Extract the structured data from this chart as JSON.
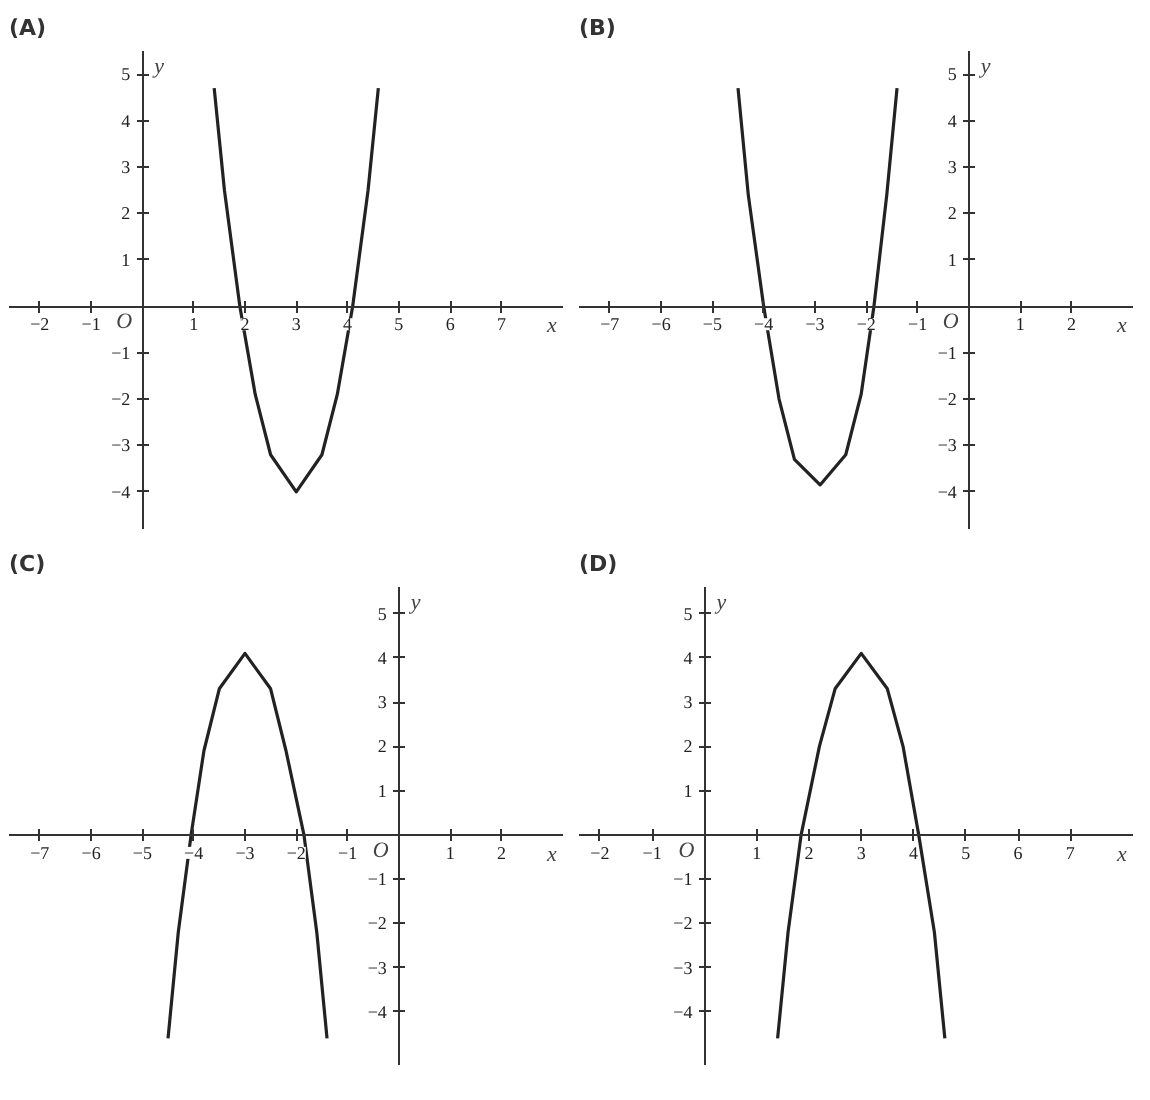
{
  "chart_data": [
    {
      "type": "line",
      "title": "(A)",
      "xlabel": "x",
      "ylabel": "y",
      "annotations": [
        "O"
      ],
      "xlim": [
        -2.6,
        8.2
      ],
      "ylim": [
        -4.8,
        5.5
      ],
      "xticks": [
        {
          "value": -2,
          "label": "−2"
        },
        {
          "value": -1,
          "label": "−1"
        },
        1,
        2,
        3,
        4,
        5,
        6,
        7
      ],
      "yticks": [
        {
          "value": -4,
          "label": "−4"
        },
        {
          "value": -3,
          "label": "−3"
        },
        {
          "value": -2,
          "label": "−2"
        },
        {
          "value": -1,
          "label": "−1"
        },
        1,
        2,
        3,
        4,
        5
      ],
      "series": [
        {
          "color": "#222222",
          "x": [
            1.4,
            1.6,
            1.9,
            2.2,
            2.5,
            3,
            3.5,
            3.8,
            4.1,
            4.4,
            4.6
          ],
          "values": [
            4.7,
            2.5,
            0,
            -1.9,
            -3.2,
            -4,
            -3.2,
            -1.9,
            0,
            2.5,
            4.7
          ]
        }
      ]
    },
    {
      "type": "line",
      "title": "(B)",
      "xlabel": "x",
      "ylabel": "y",
      "annotations": [
        "O"
      ],
      "xlim": [
        -7.6,
        3.2
      ],
      "ylim": [
        -4.8,
        5.5
      ],
      "xticks": [
        {
          "value": -7,
          "label": "−7"
        },
        {
          "value": -6,
          "label": "−6"
        },
        {
          "value": -5,
          "label": "−5"
        },
        {
          "value": -4,
          "label": "−4"
        },
        {
          "value": -3,
          "label": "−3"
        },
        {
          "value": -2,
          "label": "−2"
        },
        {
          "value": -1,
          "label": "−1"
        },
        1,
        2
      ],
      "yticks": [
        {
          "value": -4,
          "label": "−4"
        },
        {
          "value": -3,
          "label": "−3"
        },
        {
          "value": -2,
          "label": "−2"
        },
        {
          "value": -1,
          "label": "−1"
        },
        1,
        2,
        3,
        4,
        5
      ],
      "series": [
        {
          "color": "#222222",
          "x": [
            -4.5,
            -4.3,
            -4.0,
            -3.7,
            -3.4,
            -2.9,
            -2.4,
            -2.1,
            -1.85,
            -1.6,
            -1.4
          ],
          "values": [
            4.7,
            2.4,
            0,
            -2.0,
            -3.3,
            -3.85,
            -3.2,
            -1.9,
            0,
            2.4,
            4.7
          ]
        }
      ]
    },
    {
      "type": "line",
      "title": "(C)",
      "xlabel": "x",
      "ylabel": "y",
      "annotations": [
        "O"
      ],
      "xlim": [
        -7.6,
        3.2
      ],
      "ylim": [
        -5.2,
        5.6
      ],
      "xticks": [
        {
          "value": -7,
          "label": "−7"
        },
        {
          "value": -6,
          "label": "−6"
        },
        {
          "value": -5,
          "label": "−5"
        },
        {
          "value": -4,
          "label": "−4"
        },
        {
          "value": -3,
          "label": "−3"
        },
        {
          "value": -2,
          "label": "−2"
        },
        {
          "value": -1,
          "label": "−1"
        },
        1,
        2
      ],
      "yticks": [
        {
          "value": -4,
          "label": "−4"
        },
        {
          "value": -3,
          "label": "−3"
        },
        {
          "value": -2,
          "label": "−2"
        },
        {
          "value": -1,
          "label": "−1"
        },
        1,
        2,
        3,
        4,
        5
      ],
      "series": [
        {
          "color": "#222222",
          "x": [
            -4.5,
            -4.3,
            -4.05,
            -3.8,
            -3.5,
            -3.0,
            -2.5,
            -2.2,
            -1.85,
            -1.6,
            -1.4
          ],
          "values": [
            -4.6,
            -2.2,
            0,
            1.9,
            3.3,
            4.1,
            3.3,
            1.9,
            0,
            -2.2,
            -4.6
          ]
        }
      ]
    },
    {
      "type": "line",
      "title": "(D)",
      "xlabel": "x",
      "ylabel": "y",
      "annotations": [
        "O"
      ],
      "xlim": [
        -2.4,
        8.2
      ],
      "ylim": [
        -5.2,
        5.6
      ],
      "xticks": [
        {
          "value": -2,
          "label": "−2"
        },
        {
          "value": -1,
          "label": "−1"
        },
        1,
        2,
        3,
        4,
        5,
        6,
        7
      ],
      "yticks": [
        {
          "value": -4,
          "label": "−4"
        },
        {
          "value": -3,
          "label": "−3"
        },
        {
          "value": -2,
          "label": "−2"
        },
        {
          "value": -1,
          "label": "−1"
        },
        1,
        2,
        3,
        4,
        5
      ],
      "series": [
        {
          "color": "#222222",
          "x": [
            1.4,
            1.6,
            1.85,
            2.2,
            2.5,
            3.0,
            3.5,
            3.8,
            4.1,
            4.4,
            4.6
          ],
          "values": [
            -4.6,
            -2.2,
            0,
            2.0,
            3.3,
            4.1,
            3.3,
            2.0,
            0,
            -2.2,
            -4.6
          ]
        }
      ]
    }
  ]
}
